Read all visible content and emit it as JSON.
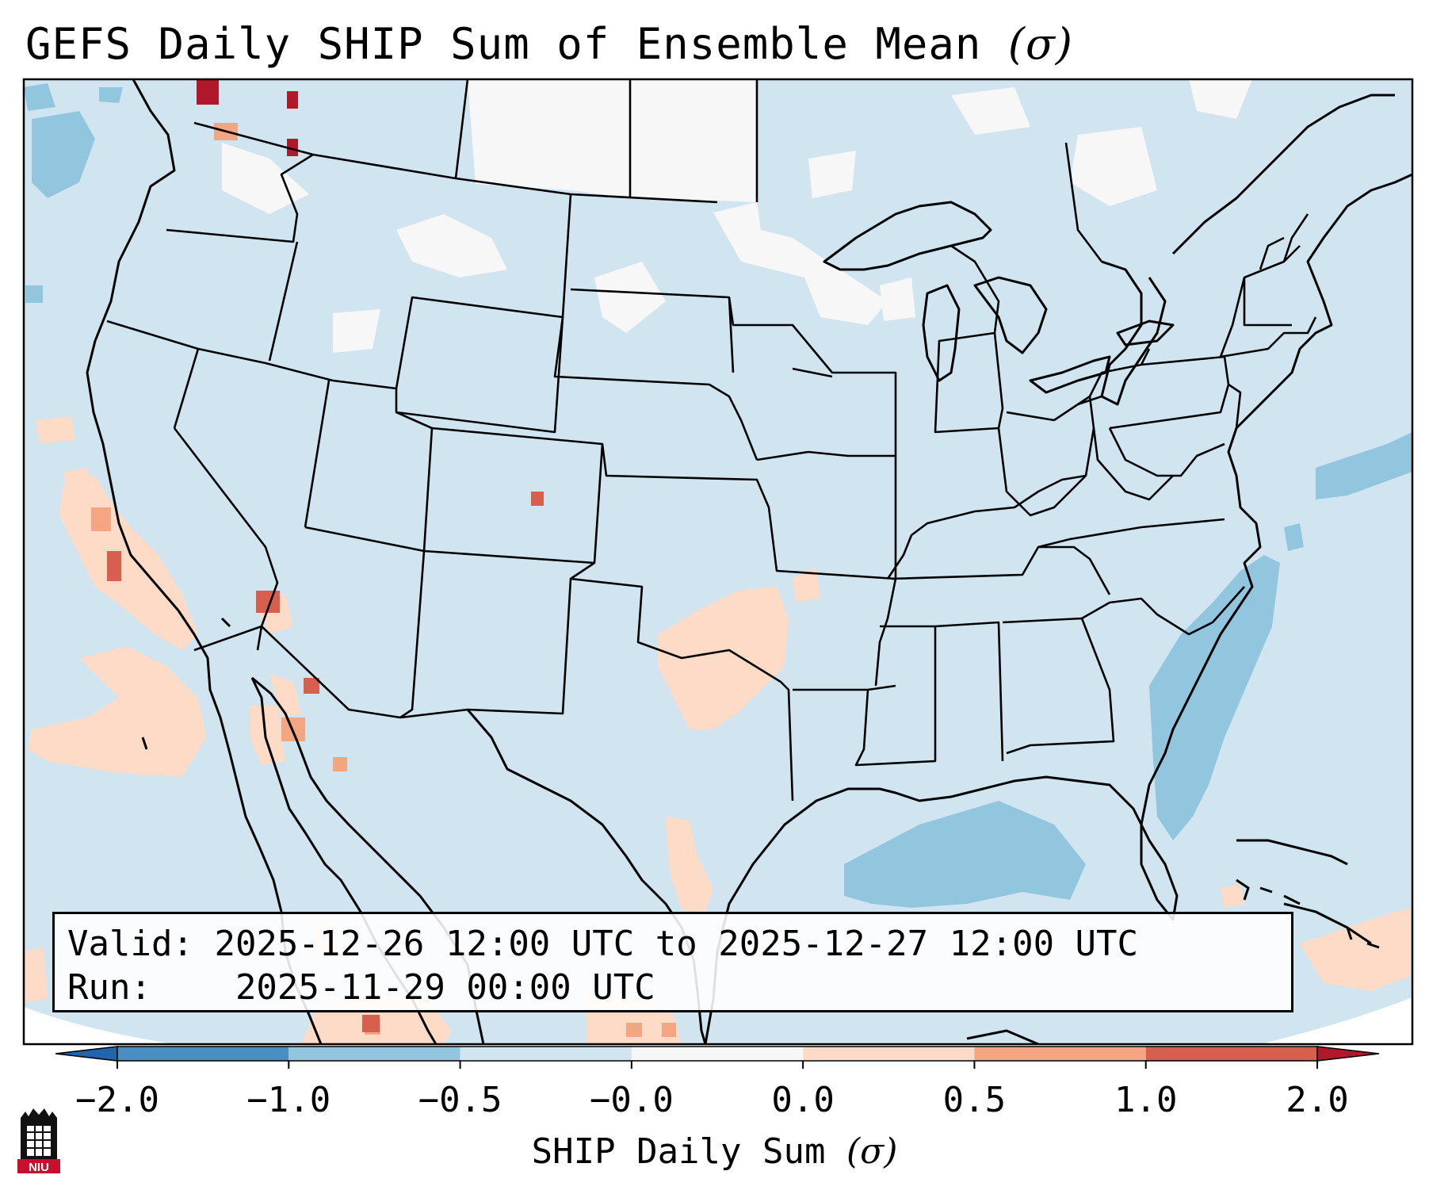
{
  "title": {
    "main": "GEFS Daily SHIP Sum of Ensemble Mean",
    "symbol": "(σ)"
  },
  "info": {
    "valid_label": "Valid:",
    "valid_value": "2025-12-26 12:00 UTC to 2025-12-27 12:00 UTC",
    "run_label": "Run:",
    "run_value": "2025-11-29 00:00 UTC"
  },
  "colorbar": {
    "label": "SHIP Daily Sum",
    "label_symbol": "(σ)",
    "ticks": [
      "−2.0",
      "−1.0",
      "−0.5",
      "−0.0",
      "0.0",
      "0.5",
      "1.0",
      "2.0"
    ],
    "colors": [
      "#4a8fc4",
      "#92c5de",
      "#d1e5f0",
      "#f7f7f7",
      "#fddbc7",
      "#f4a582",
      "#d6604d",
      "#b2182b"
    ],
    "extend_low_color": "#2166ac",
    "extend_high_color": "#b2182b"
  },
  "map": {
    "region": "Continental United States",
    "background_color": "#d1e5f0",
    "land_border_color": "#000000"
  },
  "logo": {
    "text": "NIU"
  }
}
